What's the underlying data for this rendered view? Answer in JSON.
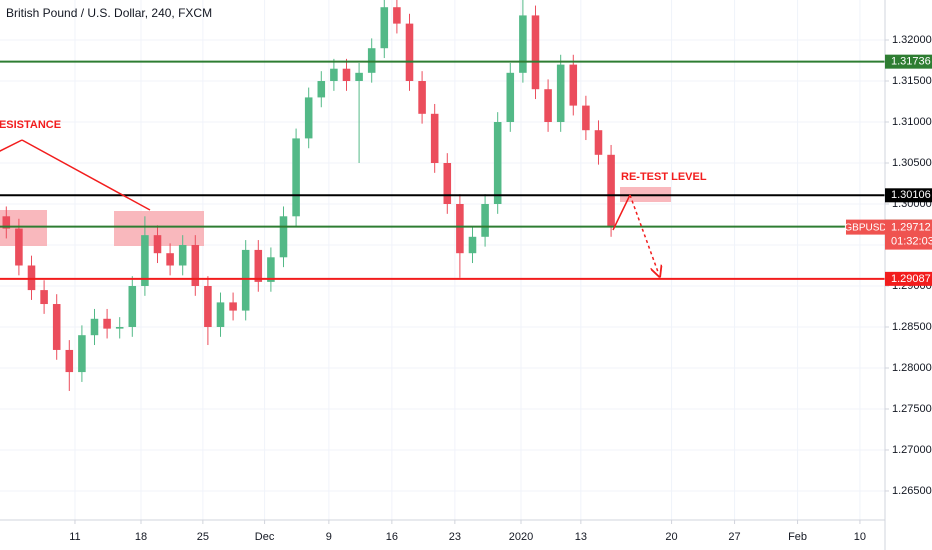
{
  "chart_data": {
    "type": "candlestick",
    "title": "British Pound / U.S. Dollar, 240, FXCM",
    "up_color": "#53b987",
    "down_color": "#eb4d5c",
    "open": [
      1.2985,
      1.297,
      1.2925,
      1.2895,
      1.2878,
      1.2822,
      1.2795,
      1.284,
      1.286,
      1.2848,
      1.285,
      1.29,
      1.2962,
      1.294,
      1.2925,
      1.295,
      1.29,
      1.285,
      1.288,
      1.287,
      1.2944,
      1.2905,
      1.2935,
      1.2985,
      1.308,
      1.313,
      1.315,
      1.3165,
      1.315,
      1.316,
      1.319,
      1.324,
      1.322,
      1.315,
      1.311,
      1.305,
      1.3,
      1.294,
      1.296,
      1.3,
      1.31,
      1.316,
      1.323,
      1.314,
      1.31,
      1.317,
      1.312,
      1.309,
      1.306
    ],
    "high": [
      1.2997,
      1.2982,
      1.2937,
      1.2907,
      1.289,
      1.2834,
      1.2852,
      1.2872,
      1.2872,
      1.2862,
      1.2912,
      1.2985,
      1.2974,
      1.2952,
      1.2962,
      1.2962,
      1.2912,
      1.2892,
      1.2892,
      1.2956,
      1.2956,
      1.2947,
      1.2997,
      1.3092,
      1.3142,
      1.3162,
      1.3177,
      1.3177,
      1.3172,
      1.3202,
      1.326,
      1.326,
      1.3232,
      1.3162,
      1.3122,
      1.3062,
      1.3012,
      1.2972,
      1.3012,
      1.3112,
      1.3172,
      1.326,
      1.3242,
      1.3152,
      1.3182,
      1.3182,
      1.3132,
      1.3102,
      1.3072
    ],
    "low": [
      1.2958,
      1.2913,
      1.2883,
      1.2866,
      1.281,
      1.2772,
      1.2783,
      1.2828,
      1.2836,
      1.2836,
      1.2838,
      1.2888,
      1.2928,
      1.2913,
      1.2913,
      1.2888,
      1.2828,
      1.2838,
      1.2858,
      1.2858,
      1.2893,
      1.2893,
      1.2923,
      1.2973,
      1.3068,
      1.3118,
      1.3138,
      1.3138,
      1.305,
      1.3148,
      1.3178,
      1.3208,
      1.3138,
      1.3098,
      1.3038,
      1.2988,
      1.291,
      1.2928,
      1.2948,
      1.2988,
      1.3088,
      1.3148,
      1.3128,
      1.3088,
      1.3088,
      1.3108,
      1.3078,
      1.3048,
      1.296
    ],
    "close": [
      1.297,
      1.2925,
      1.2895,
      1.2878,
      1.2822,
      1.2795,
      1.284,
      1.286,
      1.2848,
      1.285,
      1.29,
      1.2962,
      1.294,
      1.2925,
      1.295,
      1.29,
      1.285,
      1.288,
      1.287,
      1.2944,
      1.2905,
      1.2935,
      1.2985,
      1.308,
      1.313,
      1.315,
      1.3165,
      1.315,
      1.316,
      1.319,
      1.324,
      1.322,
      1.315,
      1.311,
      1.305,
      1.3,
      1.294,
      1.296,
      1.3,
      1.31,
      1.316,
      1.323,
      1.314,
      1.31,
      1.317,
      1.312,
      1.309,
      1.306,
      1.2972
    ],
    "xlim": [
      0,
      70.24
    ],
    "xticks": [
      {
        "value": 5.95,
        "label": "11"
      },
      {
        "value": 11.19,
        "label": "18"
      },
      {
        "value": 16.1,
        "label": "25"
      },
      {
        "value": 21.0,
        "label": "Dec"
      },
      {
        "value": 26.1,
        "label": "9"
      },
      {
        "value": 31.1,
        "label": "16"
      },
      {
        "value": 36.1,
        "label": "23"
      },
      {
        "value": 41.35,
        "label": "2020"
      },
      {
        "value": 46.1,
        "label": "13"
      },
      {
        "value": 53.3,
        "label": "20"
      },
      {
        "value": 58.3,
        "label": "27"
      },
      {
        "value": 63.3,
        "label": "Feb"
      },
      {
        "value": 68.25,
        "label": "10"
      }
    ],
    "ylim": [
      1.26146,
      1.32488
    ],
    "yticks": [
      {
        "value": 1.265,
        "label": "1.26500"
      },
      {
        "value": 1.27,
        "label": "1.27000"
      },
      {
        "value": 1.275,
        "label": "1.27500"
      },
      {
        "value": 1.28,
        "label": "1.28000"
      },
      {
        "value": 1.285,
        "label": "1.28500"
      },
      {
        "value": 1.29,
        "label": "1.29000"
      },
      {
        "value": 1.295,
        "label": "1.29500"
      },
      {
        "value": 1.3,
        "label": "1.30000"
      },
      {
        "value": 1.305,
        "label": "1.30500"
      },
      {
        "value": 1.31,
        "label": "1.31000"
      },
      {
        "value": 1.315,
        "label": "1.31500"
      },
      {
        "value": 1.32,
        "label": "1.32000"
      }
    ],
    "grid": true,
    "levels": [
      {
        "value": 1.31736,
        "color": "#2e7d32"
      },
      {
        "value": 1.30106,
        "color": "#000000"
      },
      {
        "value": 1.29724,
        "color": "#2e7d32"
      },
      {
        "value": 1.29087,
        "color": "#f21d1d"
      }
    ],
    "current": {
      "symbol": "GBPUSD",
      "price": 1.29712,
      "countdown": "01:32:03",
      "color": "#ef5350"
    },
    "annotations": [
      "RESISTANCE",
      "RE-TEST LEVEL"
    ]
  }
}
